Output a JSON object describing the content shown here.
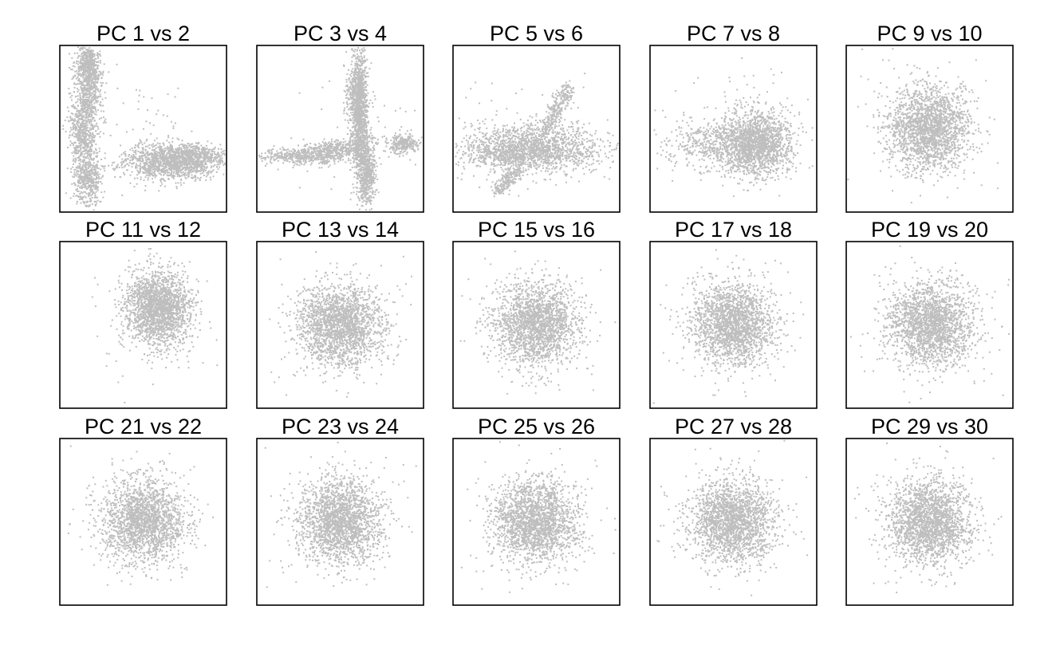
{
  "figure": {
    "point_color": "#bebebe",
    "frame_color": "#000000",
    "background": "#ffffff"
  },
  "chart_data": [
    {
      "type": "scatter",
      "title": "PC 1 vs 2",
      "pattern": "two-lobes-vertical-left-horizontal-right"
    },
    {
      "type": "scatter",
      "title": "PC 3 vs 4",
      "pattern": "cross-with-left-tail-right-cluster"
    },
    {
      "type": "scatter",
      "title": "PC 5 vs 6",
      "pattern": "wide-cloud-with-upward-and-downward-arms"
    },
    {
      "type": "scatter",
      "title": "PC 7 vs 8",
      "pattern": "right-dense-cloud-left-tail"
    },
    {
      "type": "scatter",
      "title": "PC 9 vs 10",
      "pattern": "round-cloud"
    },
    {
      "type": "scatter",
      "title": "PC 11 vs 12",
      "pattern": "round-cloud-right-shifted"
    },
    {
      "type": "scatter",
      "title": "PC 13 vs 14",
      "pattern": "round-cloud"
    },
    {
      "type": "scatter",
      "title": "PC 15 vs 16",
      "pattern": "round-cloud"
    },
    {
      "type": "scatter",
      "title": "PC 17 vs 18",
      "pattern": "round-cloud"
    },
    {
      "type": "scatter",
      "title": "PC 19 vs 20",
      "pattern": "round-cloud"
    },
    {
      "type": "scatter",
      "title": "PC 21 vs 22",
      "pattern": "round-cloud"
    },
    {
      "type": "scatter",
      "title": "PC 23 vs 24",
      "pattern": "round-cloud"
    },
    {
      "type": "scatter",
      "title": "PC 25 vs 26",
      "pattern": "round-cloud"
    },
    {
      "type": "scatter",
      "title": "PC 27 vs 28",
      "pattern": "round-cloud"
    },
    {
      "type": "scatter",
      "title": "PC 29 vs 30",
      "pattern": "round-cloud"
    }
  ]
}
